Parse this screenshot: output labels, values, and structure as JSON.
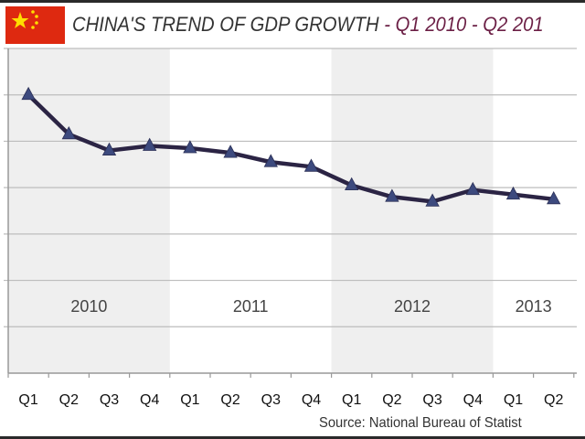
{
  "header": {
    "flag_icon": "china-flag-icon",
    "title_main": "CHINA'S TREND OF GDP GROWTH",
    "title_range": "- Q1 2010 - Q2 201"
  },
  "source": "Source: National Bureau of Statist",
  "colors": {
    "line": "#2b2444",
    "marker": "#3d4a7e",
    "band": "#efefef",
    "grid": "#bdbdbd",
    "title_range": "#6b1f45",
    "flag": "#de2910",
    "star": "#ffde00"
  },
  "chart_data": {
    "type": "line",
    "title": "CHINA'S TREND OF GDP GROWTH - Q1 2010 - Q2 201",
    "xlabel": "",
    "ylabel": "",
    "categories": [
      "Q1",
      "Q2",
      "Q3",
      "Q4",
      "Q1",
      "Q2",
      "Q3",
      "Q4",
      "Q1",
      "Q2",
      "Q3",
      "Q4",
      "Q1",
      "Q2"
    ],
    "years": [
      {
        "label": "2010",
        "start": 0,
        "end": 4,
        "shaded": true
      },
      {
        "label": "2011",
        "start": 4,
        "end": 8,
        "shaded": false
      },
      {
        "label": "2012",
        "start": 8,
        "end": 12,
        "shaded": true
      },
      {
        "label": "2013",
        "start": 12,
        "end": 14,
        "shaded": false
      }
    ],
    "values": [
      12.0,
      10.3,
      9.6,
      9.8,
      9.7,
      9.5,
      9.1,
      8.9,
      8.1,
      7.6,
      7.4,
      7.9,
      7.7,
      7.5
    ],
    "ylim": [
      0,
      14
    ],
    "y_gridlines": [
      2,
      4,
      6,
      8,
      10,
      12,
      14
    ],
    "y_tick_labels_visible": false,
    "grid": true,
    "marker": "triangle"
  }
}
